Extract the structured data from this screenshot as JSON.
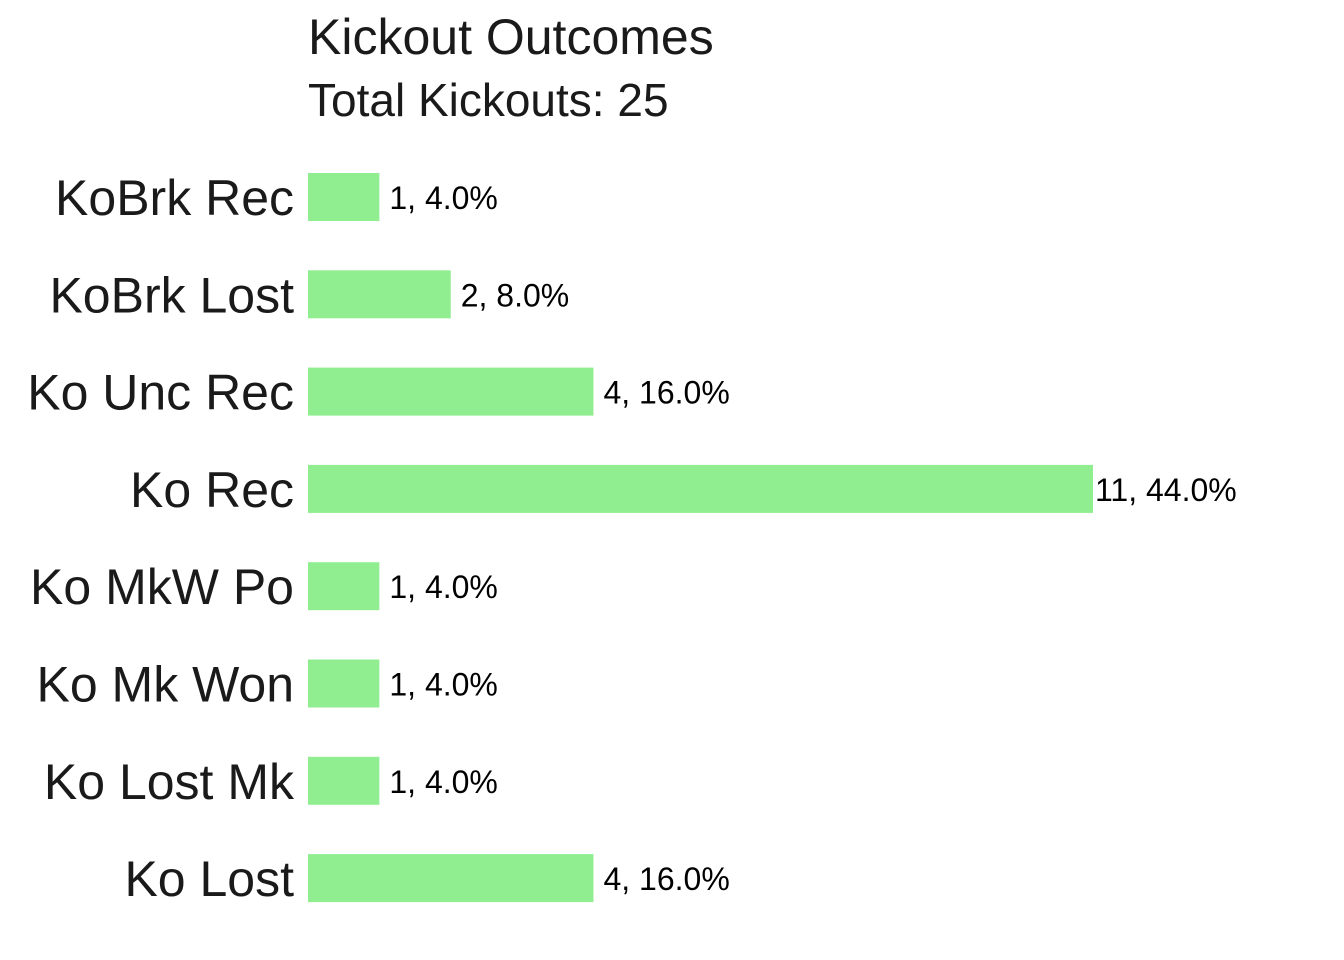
{
  "chart_data": {
    "type": "bar",
    "orientation": "horizontal",
    "title": "Kickout Outcomes",
    "subtitle": "Total Kickouts: 25",
    "categories": [
      "KoBrk Rec",
      "KoBrk Lost",
      "Ko Unc Rec",
      "Ko Rec",
      "Ko MkW Po",
      "Ko Mk Won",
      "Ko Lost Mk",
      "Ko Lost"
    ],
    "values": [
      1,
      2,
      4,
      11,
      1,
      1,
      1,
      4
    ],
    "data_labels": [
      "1, 4.0%",
      "2, 8.0%",
      "4, 16.0%",
      "11, 44.0%",
      "1, 4.0%",
      "1, 4.0%",
      "1, 4.0%",
      "4, 16.0%"
    ],
    "xlim": [
      0,
      11
    ],
    "grid": false,
    "axes_visible": false,
    "bar_color": "#90EE90"
  }
}
